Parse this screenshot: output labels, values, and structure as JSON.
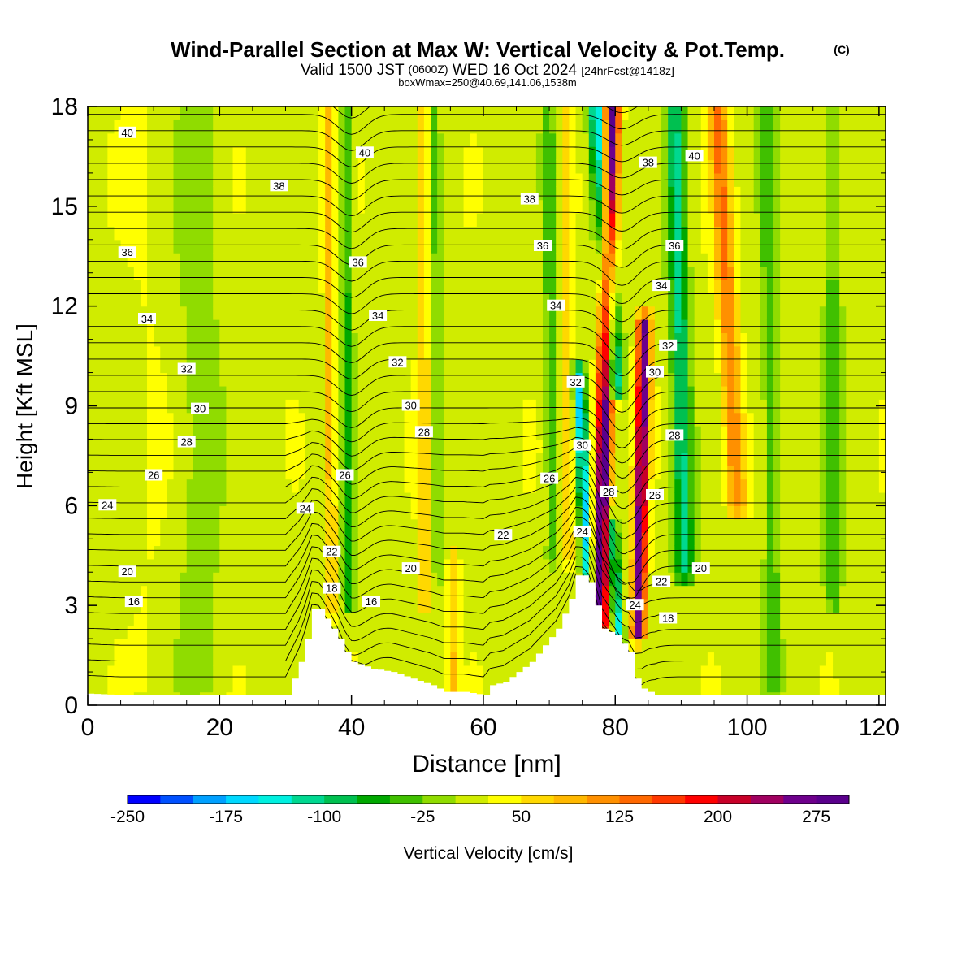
{
  "chart_data": {
    "type": "heatmap",
    "title": "Wind-Parallel Section at Max W: Vertical Velocity & Pot.Temp.",
    "title_mark": "(C)",
    "subtitle_parts": [
      "Valid 1500 JST",
      "(0600Z)",
      "WED 16 Oct 2024",
      "[24hrFcst@1418z]"
    ],
    "subsubtitle": "boxWmax=250@40.69,141.06,1538m",
    "xlabel": "Distance [nm]",
    "ylabel": "Height [Kft MSL]",
    "xlim": [
      0,
      121
    ],
    "ylim": [
      0,
      18
    ],
    "xticks": [
      0,
      20,
      40,
      60,
      80,
      100,
      120
    ],
    "yticks": [
      0,
      3,
      6,
      9,
      12,
      15,
      18
    ],
    "grid": false,
    "colorbar": {
      "label": "Vertical Velocity [cm/s]",
      "tick_labels": [
        "-250",
        "-175",
        "-100",
        "-25",
        "50",
        "125",
        "200",
        "275"
      ],
      "min": -250,
      "step": 25,
      "colors": [
        "#0000ff",
        "#0050ff",
        "#00a0ff",
        "#00d8ff",
        "#00f0e0",
        "#00d890",
        "#00c050",
        "#00a800",
        "#40c000",
        "#90dc00",
        "#d0ec00",
        "#ffff00",
        "#ffd800",
        "#ffb800",
        "#ff9000",
        "#ff6800",
        "#ff3800",
        "#ff0000",
        "#c80028",
        "#a00060",
        "#6e008c",
        "#5a008c"
      ]
    },
    "terrain_profile": [
      [
        0,
        0.35
      ],
      [
        5,
        0.3
      ],
      [
        10,
        0.3
      ],
      [
        20,
        0.3
      ],
      [
        30,
        0.3
      ],
      [
        31,
        0.8
      ],
      [
        32,
        1.3
      ],
      [
        33,
        2.0
      ],
      [
        34,
        2.9
      ],
      [
        35,
        2.9
      ],
      [
        36,
        2.6
      ],
      [
        37,
        2.3
      ],
      [
        38,
        2.0
      ],
      [
        39,
        1.6
      ],
      [
        40,
        1.3
      ],
      [
        43,
        1.1
      ],
      [
        46,
        1.0
      ],
      [
        49,
        0.8
      ],
      [
        52,
        0.6
      ],
      [
        54,
        0.4
      ],
      [
        57,
        0.4
      ],
      [
        60,
        0.3
      ],
      [
        61,
        0.6
      ],
      [
        63,
        0.7
      ],
      [
        65,
        1.0
      ],
      [
        67,
        1.3
      ],
      [
        69,
        1.8
      ],
      [
        71,
        2.3
      ],
      [
        73,
        3.2
      ],
      [
        74,
        3.9
      ],
      [
        75,
        3.9
      ],
      [
        76,
        3.7
      ],
      [
        77,
        3.0
      ],
      [
        78,
        2.3
      ],
      [
        80,
        2.1
      ],
      [
        82,
        1.6
      ],
      [
        83,
        0.8
      ],
      [
        84,
        0.5
      ],
      [
        86,
        0.3
      ],
      [
        100,
        0.3
      ],
      [
        121,
        0.3
      ]
    ],
    "w_features": [
      {
        "x": 77.5,
        "z0": 2.0,
        "z1": 18,
        "tilt": -0.12,
        "w": 300,
        "width": 1.2
      },
      {
        "x": 83.5,
        "z0": 2.2,
        "z1": 11.5,
        "tilt": -0.1,
        "w": 260,
        "width": 1.0
      },
      {
        "x": 79.8,
        "z0": 9.5,
        "z1": 18,
        "tilt": 0.3,
        "w": -190,
        "width": 1.4
      },
      {
        "x": 76.0,
        "z0": 3.5,
        "z1": 10.0,
        "tilt": 0.25,
        "w": -170,
        "width": 0.9
      },
      {
        "x": 80.5,
        "z0": 2.0,
        "z1": 5.5,
        "tilt": 0.3,
        "w": -150,
        "width": 0.8
      },
      {
        "x": 90.5,
        "z0": 4.0,
        "z1": 18,
        "tilt": 0.1,
        "w": -120,
        "width": 1.4
      },
      {
        "x": 98.5,
        "z0": 6.0,
        "z1": 18,
        "tilt": 0.25,
        "w": 110,
        "width": 1.5
      },
      {
        "x": 37.0,
        "z0": 3.0,
        "z1": 18,
        "tilt": 0.04,
        "w": 75,
        "width": 0.8
      },
      {
        "x": 39.5,
        "z0": 3.0,
        "z1": 18,
        "tilt": 0.02,
        "w": -70,
        "width": 0.9
      },
      {
        "x": 51.0,
        "z0": 3.0,
        "z1": 18,
        "tilt": 0.02,
        "w": 60,
        "width": 0.8
      },
      {
        "x": 55.5,
        "z0": 0.5,
        "z1": 4.5,
        "tilt": 0,
        "w": 55,
        "width": 0.8
      },
      {
        "x": 70.5,
        "z0": 4.5,
        "z1": 18,
        "tilt": 0.05,
        "w": -60,
        "width": 0.9
      },
      {
        "x": 73.0,
        "z0": 4.5,
        "z1": 18,
        "tilt": 0.03,
        "w": 55,
        "width": 0.9
      },
      {
        "x": 53.0,
        "z0": 4.0,
        "z1": 18,
        "tilt": 0.02,
        "w": -45,
        "width": 0.7
      },
      {
        "x": 104,
        "z0": 0.5,
        "z1": 18,
        "tilt": 0.05,
        "w": -55,
        "width": 1.2
      },
      {
        "x": 113,
        "z0": 3.0,
        "z1": 18,
        "tilt": 0.0,
        "w": -50,
        "width": 1.4
      },
      {
        "x": 17.0,
        "z0": 0.5,
        "z1": 18,
        "tilt": 0.0,
        "w": -30,
        "width": 3.0
      },
      {
        "x": 9.0,
        "z0": 0.5,
        "z1": 18,
        "tilt": 0.0,
        "w": 10,
        "width": 3.0
      }
    ],
    "theta_contours": [
      16,
      18,
      20,
      22,
      24,
      26,
      28,
      30,
      32,
      34,
      36,
      38,
      40
    ],
    "theta_labels": [
      {
        "text": "40",
        "x": 6,
        "z": 17.2
      },
      {
        "text": "40",
        "x": 42,
        "z": 16.6
      },
      {
        "text": "38",
        "x": 29,
        "z": 15.6
      },
      {
        "text": "36",
        "x": 6,
        "z": 13.6
      },
      {
        "text": "36",
        "x": 41,
        "z": 13.3
      },
      {
        "text": "34",
        "x": 9,
        "z": 11.6
      },
      {
        "text": "34",
        "x": 44,
        "z": 11.7
      },
      {
        "text": "32",
        "x": 15,
        "z": 10.1
      },
      {
        "text": "32",
        "x": 47,
        "z": 10.3
      },
      {
        "text": "30",
        "x": 17,
        "z": 8.9
      },
      {
        "text": "30",
        "x": 49,
        "z": 9.0
      },
      {
        "text": "28",
        "x": 15,
        "z": 7.9
      },
      {
        "text": "28",
        "x": 51,
        "z": 8.2
      },
      {
        "text": "26",
        "x": 10,
        "z": 6.9
      },
      {
        "text": "26",
        "x": 39,
        "z": 6.9
      },
      {
        "text": "24",
        "x": 3,
        "z": 6.0
      },
      {
        "text": "24",
        "x": 33,
        "z": 5.9
      },
      {
        "text": "22",
        "x": 37,
        "z": 4.6
      },
      {
        "text": "20",
        "x": 6,
        "z": 4.0
      },
      {
        "text": "20",
        "x": 49,
        "z": 4.1
      },
      {
        "text": "18",
        "x": 37,
        "z": 3.5
      },
      {
        "text": "16",
        "x": 7,
        "z": 3.1
      },
      {
        "text": "16",
        "x": 43,
        "z": 3.1
      },
      {
        "text": "22",
        "x": 63,
        "z": 5.1
      },
      {
        "text": "38",
        "x": 67,
        "z": 15.2
      },
      {
        "text": "36",
        "x": 69,
        "z": 13.8
      },
      {
        "text": "34",
        "x": 71,
        "z": 12.0
      },
      {
        "text": "32",
        "x": 74,
        "z": 9.7
      },
      {
        "text": "30",
        "x": 75,
        "z": 7.8
      },
      {
        "text": "26",
        "x": 70,
        "z": 6.8
      },
      {
        "text": "28",
        "x": 79,
        "z": 6.4
      },
      {
        "text": "24",
        "x": 75,
        "z": 5.2
      },
      {
        "text": "24",
        "x": 83,
        "z": 3.0
      },
      {
        "text": "38",
        "x": 85,
        "z": 16.3
      },
      {
        "text": "40",
        "x": 92,
        "z": 16.5
      },
      {
        "text": "36",
        "x": 89,
        "z": 13.8
      },
      {
        "text": "34",
        "x": 87,
        "z": 12.6
      },
      {
        "text": "32",
        "x": 88,
        "z": 10.8
      },
      {
        "text": "30",
        "x": 86,
        "z": 10.0
      },
      {
        "text": "28",
        "x": 89,
        "z": 8.1
      },
      {
        "text": "26",
        "x": 86,
        "z": 6.3
      },
      {
        "text": "22",
        "x": 87,
        "z": 3.7
      },
      {
        "text": "20",
        "x": 93,
        "z": 4.1
      },
      {
        "text": "18",
        "x": 88,
        "z": 2.6
      }
    ]
  }
}
